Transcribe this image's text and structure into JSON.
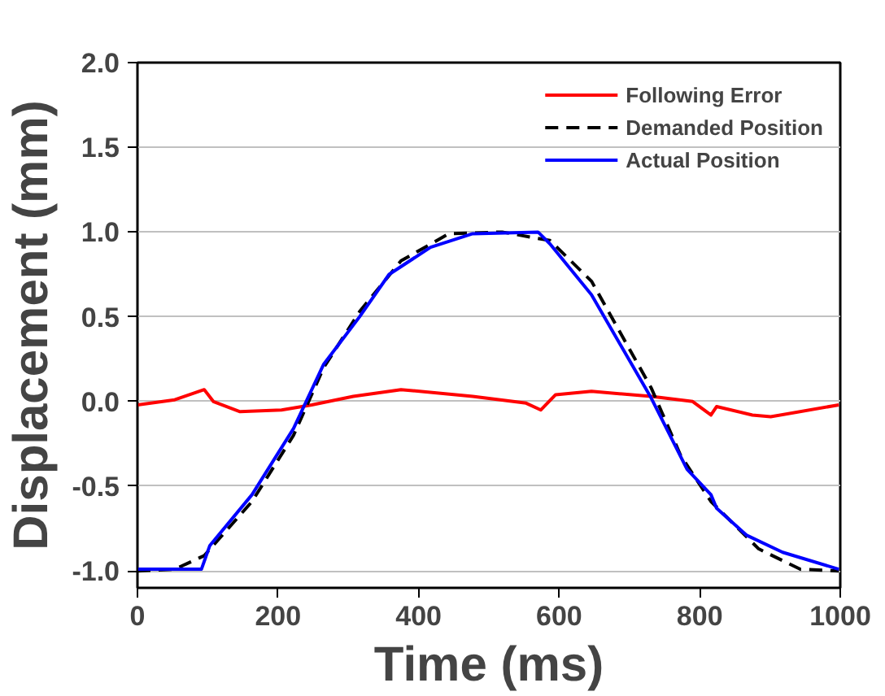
{
  "chart_data": {
    "type": "line",
    "xlabel": "Time (ms)",
    "ylabel": "Displacement (mm)",
    "xlim": [
      0,
      1000
    ],
    "ylim": [
      -1.1,
      2.0
    ],
    "xticks": [
      0,
      200,
      400,
      600,
      800,
      1000
    ],
    "yticks": [
      {
        "value": -1,
        "label": "-1.0"
      },
      -0.5,
      {
        "value": 0,
        "label": "0.0"
      },
      0.5,
      {
        "value": 1,
        "label": "1.0"
      },
      1.5,
      {
        "value": 2,
        "label": "2.0"
      }
    ],
    "grid": "y",
    "legend": "top right",
    "series": [
      {
        "name": "Following Error",
        "color": "#ff0000",
        "line_style": "solid",
        "x": [
          0,
          53,
          95,
          108,
          146,
          205,
          248,
          307,
          375,
          477,
          553,
          574,
          595,
          646,
          731,
          790,
          816,
          824,
          875,
          901,
          998
        ],
        "values": [
          -0.02,
          0.01,
          0.07,
          0,
          -0.06,
          -0.05,
          -0.02,
          0.03,
          0.07,
          0.03,
          -0.01,
          -0.05,
          0.04,
          0.06,
          0.03,
          0,
          -0.08,
          -0.03,
          -0.08,
          -0.09,
          -0.02
        ]
      },
      {
        "name": "Demanded Position",
        "color": "#000000",
        "line_style": "dashed",
        "x": [
          0,
          53,
          95,
          163,
          222,
          265,
          316,
          375,
          443,
          519,
          587,
          646,
          731,
          773,
          816,
          884,
          943,
          998
        ],
        "values": [
          -1,
          -0.99,
          -0.91,
          -0.59,
          -0.2,
          0.2,
          0.53,
          0.83,
          0.99,
          1.0,
          0.95,
          0.71,
          0.08,
          -0.32,
          -0.59,
          -0.87,
          -0.99,
          -1.0
        ]
      },
      {
        "name": "Actual Position",
        "color": "#0000ff",
        "line_style": "solid",
        "x": [
          0,
          91,
          103,
          163,
          222,
          265,
          316,
          358,
          417,
          477,
          570,
          587,
          646,
          731,
          782,
          816,
          824,
          867,
          918,
          998
        ],
        "values": [
          -0.99,
          -0.99,
          -0.85,
          -0.55,
          -0.16,
          0.22,
          0.5,
          0.75,
          0.91,
          0.99,
          1.0,
          0.93,
          0.63,
          0.02,
          -0.4,
          -0.55,
          -0.63,
          -0.79,
          -0.89,
          -0.99
        ]
      }
    ]
  }
}
